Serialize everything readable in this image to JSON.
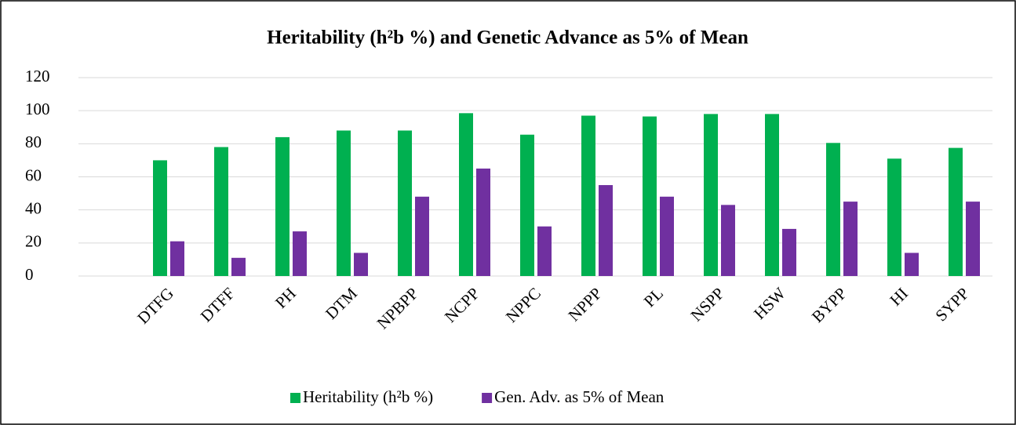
{
  "chart_data": {
    "type": "bar",
    "title": "Heritability (h²b %) and Genetic Advance as 5% of Mean",
    "categories": [
      "DTFG",
      "DTFF",
      "PH",
      "DTM",
      "NPBPP",
      "NCPP",
      "NPPC",
      "NPPP",
      "PL",
      "NSPP",
      "HSW",
      "BYPP",
      "HI",
      "SYPP"
    ],
    "series": [
      {
        "name": "Heritability (h²b %)",
        "color": "#00b050",
        "values": [
          70,
          78,
          84,
          88,
          88,
          98.5,
          85.5,
          97,
          96.5,
          98,
          98,
          80.5,
          71,
          77.5
        ]
      },
      {
        "name": "Gen. Adv. as 5% of Mean",
        "color": "#7030a0",
        "values": [
          21,
          11,
          27,
          14,
          48,
          65,
          30,
          55,
          48,
          43,
          28.5,
          45,
          14,
          45
        ]
      }
    ],
    "ylim": [
      0,
      120
    ],
    "yticks": [
      0,
      20,
      40,
      60,
      80,
      100,
      120
    ],
    "grid": true,
    "legend": "bottom"
  }
}
